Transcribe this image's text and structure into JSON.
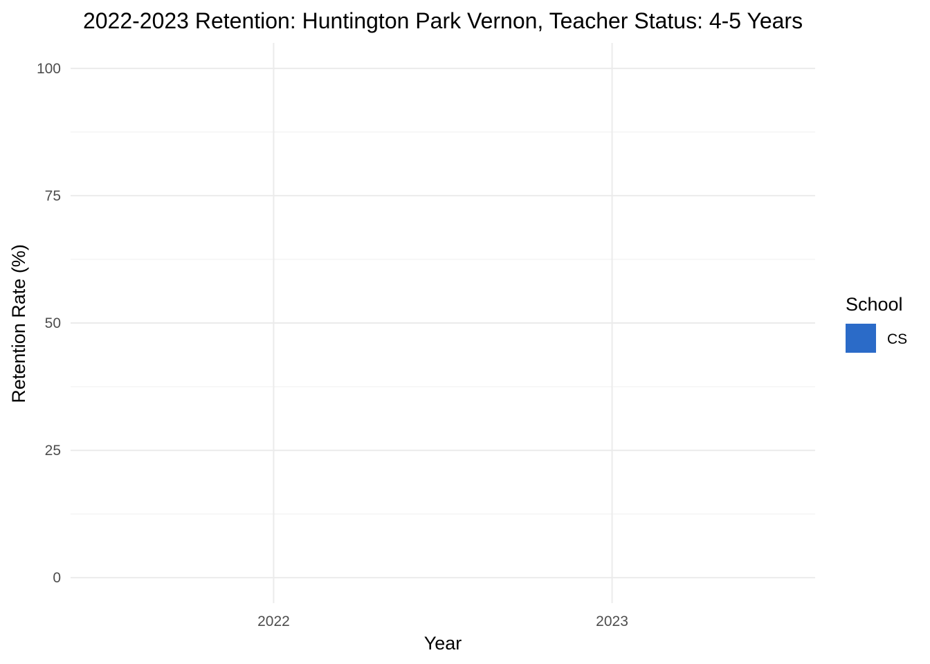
{
  "chart_data": {
    "type": "bar",
    "title": "2022-2023 Retention: Huntington Park Vernon, Teacher Status: 4-5 Years",
    "xlabel": "Year",
    "ylabel": "Retention Rate (%)",
    "categories": [
      "2022",
      "2023"
    ],
    "series": [
      {
        "name": "CS",
        "values": [
          null,
          null
        ],
        "color": "#2b6bc8"
      }
    ],
    "ylim": [
      0,
      100
    ],
    "yticks": [
      0,
      25,
      50,
      75,
      100
    ],
    "grid": true,
    "legend": {
      "title": "School",
      "position": "right",
      "entries": [
        {
          "label": "CS",
          "color": "#2b6bc8"
        }
      ]
    }
  }
}
